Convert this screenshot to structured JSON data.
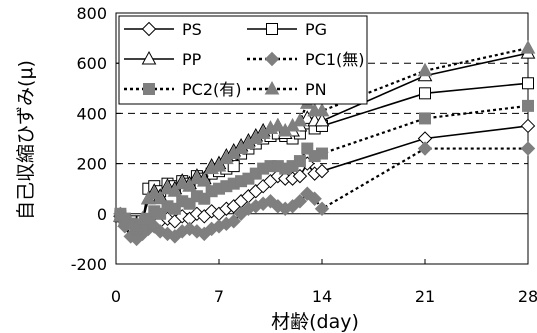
{
  "chart_data": {
    "type": "line",
    "title": "",
    "xlabel": "材齢(day)",
    "ylabel": "自己収縮ひずみ(μ)",
    "xlim": [
      0,
      28
    ],
    "ylim": [
      -200,
      800
    ],
    "xticks": [
      0,
      7,
      14,
      21,
      28
    ],
    "yticks": [
      -200,
      0,
      200,
      400,
      600,
      800
    ],
    "grid": "horizontal dashed at 200, 400, 600",
    "legend": "top-left inside, 2 columns",
    "series": [
      {
        "name": "PS",
        "marker": "diamond-open",
        "line": "solid",
        "x": [
          0.3,
          0.6,
          1.0,
          1.4,
          1.8,
          2.2,
          2.6,
          3.0,
          3.5,
          4.0,
          4.5,
          5.0,
          5.5,
          6.0,
          6.5,
          7.0,
          7.5,
          8.0,
          8.5,
          9.0,
          9.5,
          10.0,
          10.5,
          11.0,
          11.5,
          12.0,
          12.5,
          13.0,
          13.5,
          14.0,
          21.0,
          28.0
        ],
        "y": [
          -10,
          -30,
          -50,
          -70,
          -60,
          -40,
          -50,
          -30,
          -20,
          -30,
          -10,
          -20,
          0,
          -10,
          10,
          0,
          20,
          30,
          50,
          70,
          90,
          110,
          130,
          150,
          140,
          140,
          150,
          200,
          160,
          170,
          300,
          350
        ]
      },
      {
        "name": "PG",
        "marker": "square-open",
        "line": "solid",
        "x": [
          0.3,
          0.6,
          1.0,
          1.4,
          1.8,
          2.2,
          2.6,
          3.0,
          3.5,
          4.0,
          4.5,
          5.0,
          5.5,
          6.0,
          6.5,
          7.0,
          7.5,
          8.0,
          8.5,
          9.0,
          9.5,
          10.0,
          10.5,
          11.0,
          11.5,
          12.0,
          12.5,
          13.0,
          13.5,
          14.0,
          21.0,
          28.0
        ],
        "y": [
          -10,
          -20,
          -30,
          -40,
          -30,
          100,
          110,
          90,
          120,
          110,
          130,
          120,
          150,
          140,
          160,
          170,
          180,
          190,
          240,
          260,
          280,
          300,
          310,
          320,
          310,
          300,
          320,
          360,
          340,
          350,
          480,
          520
        ]
      },
      {
        "name": "PP",
        "marker": "triangle-open",
        "line": "solid",
        "x": [
          0.3,
          0.6,
          1.0,
          1.4,
          1.8,
          2.2,
          2.6,
          3.0,
          3.5,
          4.0,
          4.5,
          5.0,
          5.5,
          6.0,
          6.5,
          7.0,
          7.5,
          8.0,
          8.5,
          9.0,
          9.5,
          10.0,
          10.5,
          11.0,
          11.5,
          12.0,
          12.5,
          13.0,
          13.5,
          14.0,
          21.0,
          28.0
        ],
        "y": [
          -10,
          -30,
          -40,
          -50,
          -30,
          60,
          90,
          70,
          110,
          100,
          130,
          120,
          150,
          140,
          190,
          200,
          230,
          250,
          270,
          290,
          310,
          330,
          340,
          350,
          320,
          330,
          350,
          380,
          370,
          370,
          550,
          640
        ]
      },
      {
        "name": "PC1(無)",
        "marker": "diamond-filled",
        "line": "dotted",
        "x": [
          0.3,
          0.6,
          1.0,
          1.4,
          1.8,
          2.2,
          2.6,
          3.0,
          3.5,
          4.0,
          4.5,
          5.0,
          5.5,
          6.0,
          6.5,
          7.0,
          7.5,
          8.0,
          8.5,
          9.0,
          9.5,
          10.0,
          10.5,
          11.0,
          11.5,
          12.0,
          12.5,
          13.0,
          13.5,
          14.0,
          21.0,
          28.0
        ],
        "y": [
          0,
          -50,
          -90,
          -100,
          -80,
          -60,
          -50,
          -70,
          -80,
          -90,
          -70,
          -60,
          -70,
          -80,
          -60,
          -50,
          -40,
          -30,
          0,
          20,
          30,
          40,
          50,
          30,
          20,
          30,
          50,
          80,
          60,
          20,
          260,
          260
        ]
      },
      {
        "name": "PC2(有)",
        "marker": "square-filled",
        "line": "dotted",
        "x": [
          0.3,
          0.6,
          1.0,
          1.4,
          1.8,
          2.2,
          2.6,
          3.0,
          3.5,
          4.0,
          4.5,
          5.0,
          5.5,
          6.0,
          6.5,
          7.0,
          7.5,
          8.0,
          8.5,
          9.0,
          9.5,
          10.0,
          10.5,
          11.0,
          11.5,
          12.0,
          12.5,
          13.0,
          13.5,
          14.0,
          21.0,
          28.0
        ],
        "y": [
          0,
          -20,
          -40,
          -60,
          -50,
          -20,
          10,
          0,
          30,
          20,
          50,
          40,
          70,
          60,
          90,
          100,
          110,
          120,
          130,
          140,
          160,
          180,
          190,
          190,
          180,
          190,
          210,
          260,
          230,
          240,
          380,
          430
        ]
      },
      {
        "name": "PN",
        "marker": "triangle-filled",
        "line": "dotted",
        "x": [
          0.3,
          0.6,
          1.0,
          1.4,
          1.8,
          2.2,
          2.6,
          3.0,
          3.5,
          4.0,
          4.5,
          5.0,
          5.5,
          6.0,
          6.5,
          7.0,
          7.5,
          8.0,
          8.5,
          9.0,
          9.5,
          10.0,
          10.5,
          11.0,
          11.5,
          12.0,
          12.5,
          13.0,
          13.5,
          14.0,
          21.0,
          28.0
        ],
        "y": [
          -10,
          -30,
          -40,
          -50,
          -20,
          60,
          80,
          60,
          100,
          90,
          120,
          110,
          140,
          130,
          180,
          190,
          220,
          240,
          260,
          280,
          300,
          320,
          340,
          350,
          330,
          350,
          370,
          440,
          410,
          410,
          570,
          660
        ]
      }
    ]
  }
}
